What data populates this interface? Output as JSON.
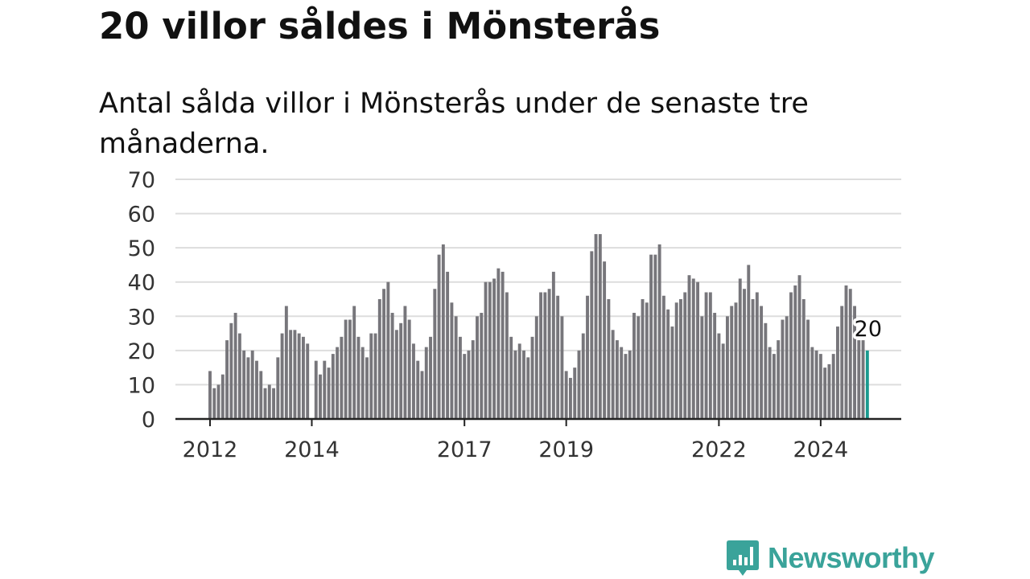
{
  "title": "20 villor såldes i Mönsterås",
  "subtitle": "Antal sålda villor i Mönsterås under de senaste tre månaderna.",
  "brand": {
    "name": "Newsworthy",
    "icon": "newsworthy-logo-icon"
  },
  "colors": {
    "bar": "#77767b",
    "highlight": "#1a9a8f",
    "grid": "#dddddd",
    "axis": "#222222",
    "brand": "#3aa39a"
  },
  "chart_data": {
    "type": "bar",
    "ylim": [
      0,
      70
    ],
    "yticks": [
      0,
      10,
      20,
      30,
      40,
      50,
      60,
      70
    ],
    "grid": true,
    "xlabel": "",
    "ylabel": "",
    "xticks": [
      {
        "label": "2012",
        "index": 0
      },
      {
        "label": "2014",
        "index": 24
      },
      {
        "label": "2017",
        "index": 60
      },
      {
        "label": "2019",
        "index": 84
      },
      {
        "label": "2022",
        "index": 120
      },
      {
        "label": "2024",
        "index": 144
      }
    ],
    "values": [
      14,
      9,
      10,
      13,
      23,
      28,
      31,
      25,
      20,
      18,
      20,
      17,
      14,
      9,
      10,
      9,
      18,
      25,
      33,
      26,
      26,
      25,
      24,
      22,
      0,
      17,
      13,
      17,
      15,
      19,
      21,
      24,
      29,
      29,
      33,
      24,
      21,
      18,
      25,
      25,
      35,
      38,
      40,
      31,
      26,
      28,
      33,
      29,
      22,
      17,
      14,
      21,
      24,
      38,
      48,
      51,
      43,
      34,
      30,
      24,
      19,
      20,
      23,
      30,
      31,
      40,
      40,
      41,
      44,
      43,
      37,
      24,
      20,
      22,
      20,
      18,
      24,
      30,
      37,
      37,
      38,
      43,
      36,
      30,
      14,
      12,
      15,
      20,
      25,
      36,
      49,
      54,
      54,
      46,
      35,
      26,
      23,
      21,
      19,
      20,
      31,
      30,
      35,
      34,
      48,
      48,
      51,
      36,
      32,
      27,
      34,
      35,
      37,
      42,
      41,
      40,
      30,
      37,
      37,
      31,
      25,
      22,
      30,
      33,
      34,
      41,
      38,
      45,
      35,
      37,
      33,
      28,
      21,
      19,
      23,
      29,
      30,
      37,
      39,
      42,
      35,
      29,
      21,
      20,
      19,
      15,
      16,
      19,
      27,
      33,
      39,
      38,
      33,
      23,
      23,
      20
    ],
    "highlight_index": 155,
    "highlight_label": "20"
  }
}
